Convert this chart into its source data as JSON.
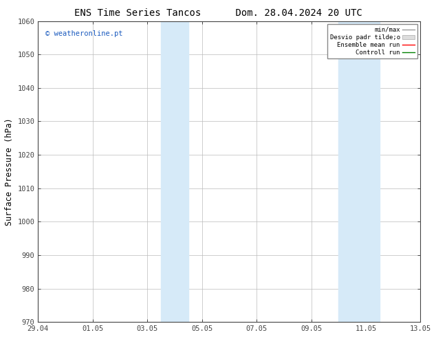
{
  "title_left": "ENS Time Series Tancos",
  "title_right": "Dom. 28.04.2024 20 UTC",
  "ylabel": "Surface Pressure (hPa)",
  "ylim": [
    970,
    1060
  ],
  "yticks": [
    970,
    980,
    990,
    1000,
    1010,
    1020,
    1030,
    1040,
    1050,
    1060
  ],
  "xtick_positions": [
    0,
    2,
    4,
    6,
    8,
    10,
    12,
    14
  ],
  "xtick_labels": [
    "29.04",
    "01.05",
    "03.05",
    "05.05",
    "07.05",
    "09.05",
    "11.05",
    "13.05"
  ],
  "shaded_regions": [
    {
      "xstart": 4.5,
      "xend": 5.5,
      "color": "#d6eaf8"
    },
    {
      "xstart": 11.0,
      "xend": 12.5,
      "color": "#d6eaf8"
    }
  ],
  "watermark_text": "© weatheronline.pt",
  "watermark_color": "#1a5abe",
  "background_color": "#ffffff",
  "plot_bg_color": "#ffffff",
  "grid_color": "#bbbbbb",
  "title_fontsize": 10,
  "tick_fontsize": 7.5,
  "ylabel_fontsize": 8.5
}
